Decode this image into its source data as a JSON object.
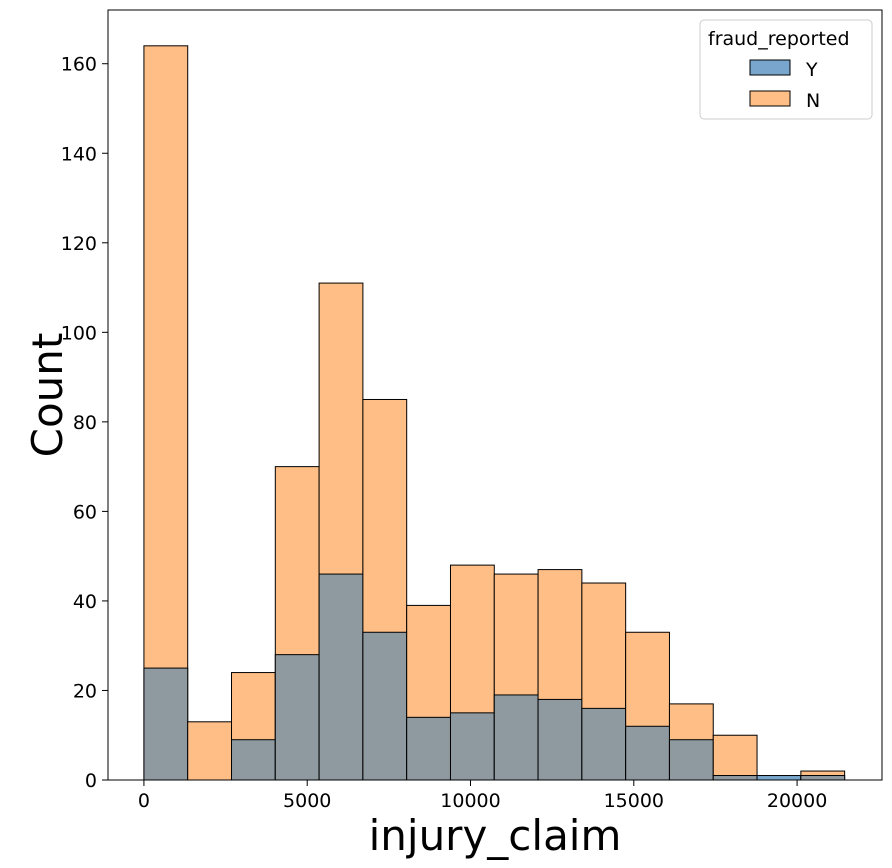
{
  "chart_data": {
    "type": "bar",
    "subtype": "overlaid-histogram",
    "xlabel": "injury_claim",
    "ylabel": "Count",
    "xlim": [
      -1100,
      22600
    ],
    "ylim": [
      0,
      172
    ],
    "xticks": [
      0,
      5000,
      10000,
      15000,
      20000
    ],
    "yticks": [
      0,
      20,
      40,
      60,
      80,
      100,
      120,
      140,
      160
    ],
    "bin_edges": [
      0,
      1341,
      2682,
      4023,
      5364,
      6705,
      8046,
      9387,
      10728,
      12069,
      13410,
      14751,
      16092,
      17433,
      18774,
      20115,
      21456
    ],
    "series": [
      {
        "name": "N",
        "color": "#ffbe86",
        "values": [
          164,
          13,
          24,
          70,
          111,
          85,
          39,
          48,
          46,
          47,
          44,
          33,
          17,
          10,
          0,
          2
        ]
      },
      {
        "name": "Y",
        "color": "#79a6cd",
        "values": [
          25,
          0,
          9,
          28,
          46,
          33,
          14,
          15,
          19,
          18,
          16,
          12,
          9,
          1,
          1,
          1
        ]
      }
    ],
    "overlap_color": "#8e9aa0",
    "legend": {
      "title": "fraud_reported",
      "position": "top-right",
      "entries": [
        "Y",
        "N"
      ]
    },
    "grid": false
  }
}
